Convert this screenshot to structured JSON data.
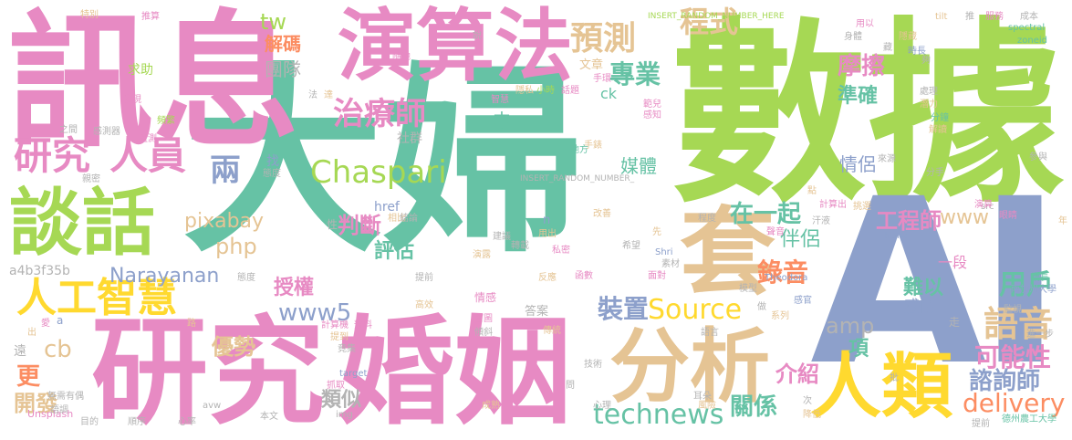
{
  "palette": {
    "teal": "#66c2a5",
    "green": "#a6d854",
    "pink": "#e78ac3",
    "tan": "#e5c494",
    "blue": "#8da0cb",
    "yellow": "#ffd92f",
    "orange": "#fc8d62",
    "gray": "#b3b3b3"
  },
  "words": {
    "dafu": "大婦",
    "shuju": "數據",
    "xunxi": "訊息",
    "yanjiu": "研究",
    "hunyin": "婚姻",
    "ai": "AI",
    "yansuanfa": "演算法",
    "tanhua": "談話",
    "fenxi": "分析",
    "renlei": "人類",
    "tao": "套",
    "rengongzhihui": "人工智慧",
    "yanjiu_small": "研究",
    "renyuan": "人員",
    "zhiliaoshi": "治療師",
    "chaspari": "Chaspari",
    "liang": "兩",
    "yuce": "預測",
    "chengshi": "程式",
    "zhuanye": "專業",
    "mocha": "摩擦",
    "zhunque": "準確",
    "qinglv": "情侶",
    "meiti": "媒體",
    "source": "Source",
    "technews": "technews",
    "delivery": "delivery",
    "yuyin": "語音",
    "yonghu": "用戶",
    "kenengxing": "可能性",
    "zixunshi": "諮詢師",
    "gongchengshi": "工程師",
    "luyin": "錄音",
    "banlv": "伴侶",
    "zaiyiqi": "在一起",
    "zhuangzhi": "裝置",
    "guanxi": "關係",
    "jieshao": "介紹",
    "xiang": "項",
    "amp": "amp",
    "www5": "www5",
    "narayanan": "Narayanan",
    "php": "php",
    "pixabay": "pixabay",
    "shouquan": "授權",
    "youshi": "優勢",
    "panduan": "判斷",
    "pinggu": "評估",
    "leisi": "類似",
    "kaifa": "開發",
    "geng": "更",
    "cb": "cb",
    "a4b3f35b": "a4b3f35b",
    "tw": "tw",
    "jiema": "解碼",
    "tuandui": "團隊",
    "qiuzhu": "求助",
    "www": "www",
    "yiduan": "一段",
    "nanyi": "難以",
    "ganqing": "感情",
    "zhong": "中",
    "shequn": "社群",
    "wenzhang": "文章",
    "ck": "ck",
    "href": "href",
    "unsplash": "Unsplash",
    "insert1": "INSERT_RANDOM_NUMBER_HERE",
    "insert2": "INSERT_RANDOM_NUMBER_",
    "zoneid": "zoneid",
    "spectral": "spectral",
    "tilt": "tilt",
    "fuwu": "服務",
    "chengben": "成本",
    "tuisuan": "推算",
    "xing": "性",
    "yongyi": "用以",
    "shenti": "身體",
    "zhaiyao": "答案",
    "blank": "_blank",
    "src": "src",
    "teshu": "特別",
    "nianlingpart": "年",
    "n": "n",
    "gaoshan": "改善",
    "touzhao": "找",
    "taidu": "態度",
    "jiance": "監測",
    "ganceqi": "感測器",
    "fenshou": "分手",
    "laiyuan": "來源",
    "difang": "地方",
    "canyu": "參與",
    "jisuanchu": "計算出",
    "tiaoyin": "挑選",
    "yuanjian": "演算",
    "yanjing": "眼睛",
    "zhiwei": "之間",
    "pinfan": "頻繁",
    "qingxu": "情感",
    "xiangdui": "相比",
    "jielun": "結論",
    "shijian": "時間",
    "teodora": "Theodora",
    "nanjiadaxue": "南加州大學",
    "dezhou": "德州農工大學",
    "yibu": "進一步",
    "pipan": "批",
    "zou": "走",
    "xilie": "系列",
    "zuo": "做",
    "ganguan": "感官",
    "moxing": "模型",
    "zengzhang": "增長",
    "jizhang": "降低",
    "fenzhong": "分鐘",
    "jiedu": "解讀",
    "gou": "夠",
    "zang": "藏",
    "shichang": "時長",
    "yincang": "隱藏",
    "target": "target",
    "avw": "avw",
    "img": "img",
    "bentext": "本文",
    "xinlv": "心率",
    "shunxu": "順序",
    "mude": "目的",
    "yudi": "語調",
    "wuxu": "無需有偶",
    "tiyin": "提前",
    "jiyu": "計算機",
    "yubao": "預料",
    "ti": "提到",
    "jingji": "竟集",
    "qingxie": "傾斜",
    "shouye": "首圖",
    "chuantong": "傳統",
    "jishu": "技術",
    "erduo": "耳朵",
    "fengxian": "風險",
    "chenggong": "成熟",
    "yuyan": "語言",
    "xinli": "心理",
    "wen": "問",
    "ci": "次",
    "jianyi": "建議",
    "xiwang": "希望",
    "sucai": "素材",
    "mianduo": "面對",
    "hanshu": "函數",
    "hanshi": "私密",
    "shiyi": "Shri",
    "xian": "先",
    "zhuandan": "轉載",
    "yanlu": "演露",
    "gaoxiao": "高效",
    "tiqian": "提前",
    "hanzi_zhineng": "智慧",
    "yinsi": "隱私",
    "xiaoshi": "小時",
    "huati": "話題",
    "shouti": "手環",
    "fanli": "範兒",
    "ganzhi": "感知",
    "shoubiao": "手錶",
    "ai2": "愛",
    "chu": "出",
    "a": "a",
    "yuan": "遠",
    "faxian": "發現",
    "suidi": "隨地",
    "shuo": "說",
    "fa": "法",
    "da": "達",
    "zhuaqi": "抓取",
    "zhunbei": "參與",
    "jiance2": "監視",
    "qinmi": "親密",
    "dian": "點",
    "shengyin": "聲音",
    "hanliang": "汗液",
    "chengdu": "程度",
    "yongchu": "用出",
    "tui": "推",
    "chuli": "處理",
    "lu": "路",
    "qianli": "潛力",
    "fanying": "反應"
  }
}
